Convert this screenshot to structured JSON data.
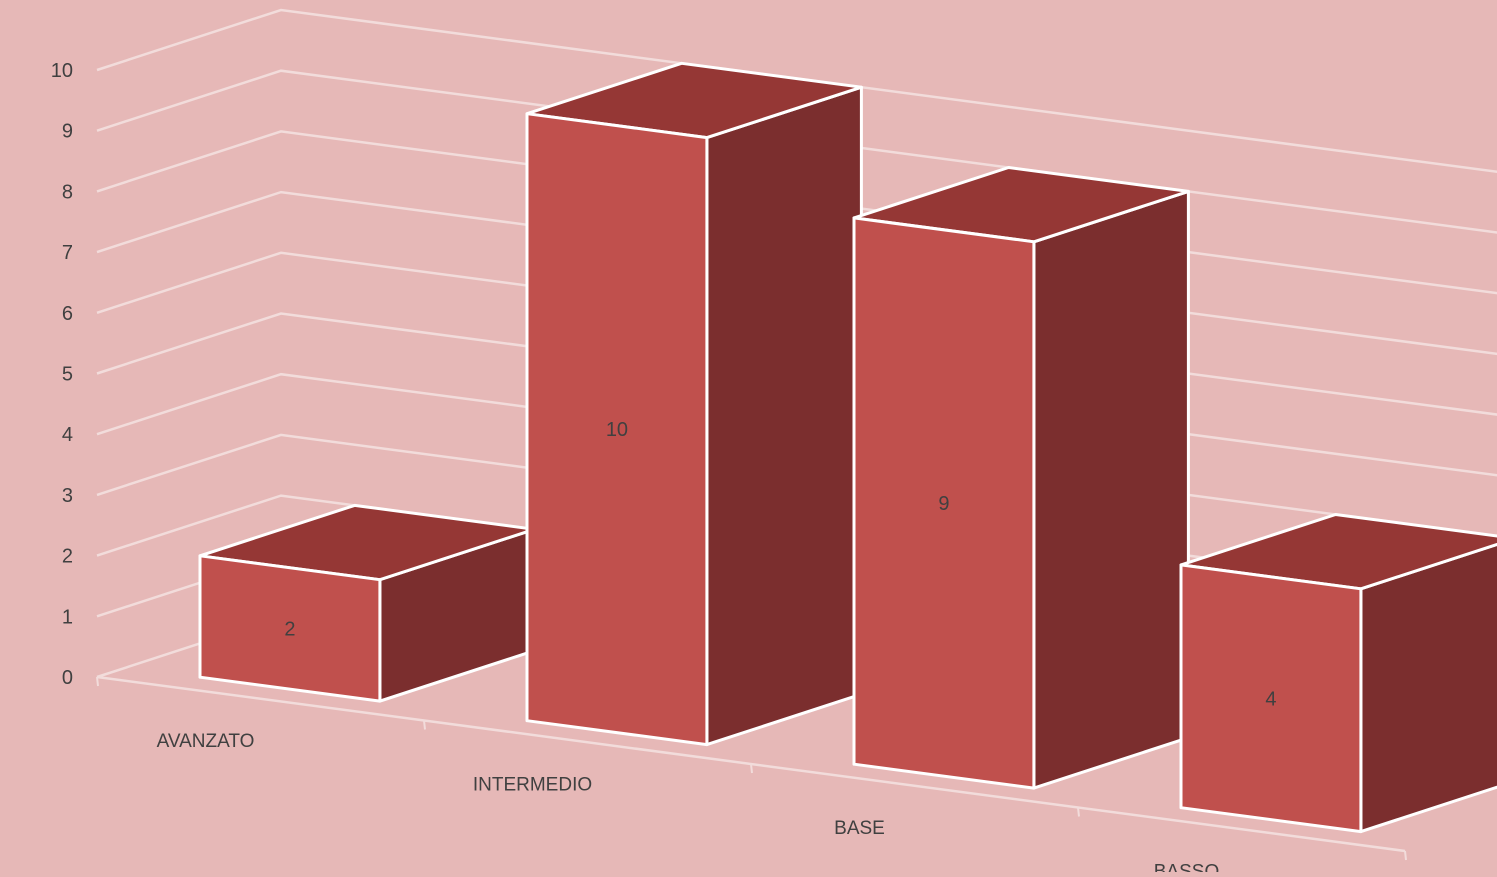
{
  "chart_data": {
    "type": "bar",
    "style": "3d-column",
    "categories": [
      "AVANZATO",
      "INTERMEDIO",
      "BASE",
      "BASSO"
    ],
    "values": [
      2,
      10,
      9,
      4
    ],
    "data_labels": [
      "2",
      "10",
      "9",
      "4"
    ],
    "ylim": [
      0,
      10
    ],
    "yticks": [
      "0",
      "1",
      "2",
      "3",
      "4",
      "5",
      "6",
      "7",
      "8",
      "9",
      "10"
    ],
    "grid": true,
    "legend": "none",
    "title": "",
    "xlabel": "",
    "ylabel": ""
  },
  "colors": {
    "background": "#e6b8b7",
    "gridline": "#f2dcdb",
    "bar_front": "#c0504d",
    "bar_top": "#953735",
    "bar_side": "#7b2e2e",
    "bar_outline": "#ffffff",
    "text": "#404040"
  }
}
